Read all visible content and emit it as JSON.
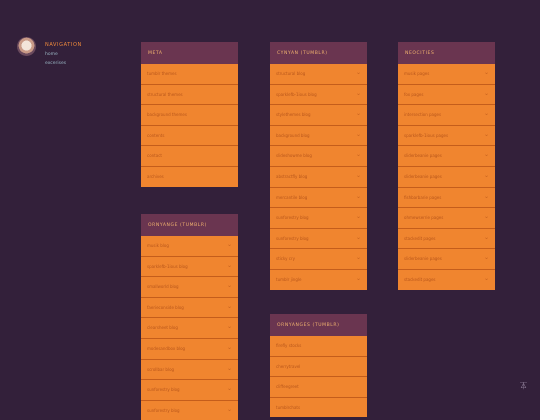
{
  "navigation": {
    "title": "NAVIGATION",
    "links": [
      "home",
      "excerises"
    ]
  },
  "panels": [
    {
      "title": "META",
      "items": [
        "tumblr themes",
        "structural themes",
        "background themes",
        "contents",
        "contact",
        "archives"
      ]
    },
    {
      "title": "CYNYAN (TUMBLR)",
      "items": [
        "structural blog",
        "sparklefb-1ious blog",
        "stylethemes blog",
        "background blog",
        "slideshowme blog",
        "abstractfly blog",
        "mercantile blog",
        "sunforestry blog",
        "sunforestry blog",
        "sticky cry",
        "tumblr jingle"
      ]
    },
    {
      "title": "NEOCITIES",
      "items": [
        "musik pages",
        "fox pages",
        "intersection pages",
        "sparklefb-1ious pages",
        "sliderbeanie pages",
        "sliderbeanie pages",
        "fishbarbarie pages",
        "ohmewserrie pages",
        "stackedit pages",
        "sliderbeanie pages",
        "stackedit pages"
      ]
    },
    {
      "title": "ORNYANGE (TUMBLR)",
      "items": [
        "musik blog",
        "sparklefb-1ious blog",
        "smallworld blog",
        "faerieconside blog",
        "clearsheet blog",
        "modesandbox blog",
        "scrollbar blog",
        "sunforestry blog",
        "sunforestry blog"
      ]
    },
    {
      "title": "ORNYANGES (TUMBLR)",
      "items": [
        "firefly stocks",
        "cherrytravel",
        "cliffeegreet",
        "tumblrchats"
      ]
    }
  ],
  "icons": {
    "chevron": "chevron-down-icon",
    "corner": "scroll-icon"
  },
  "colors": {
    "background": "#33203a",
    "panel_header": "#6a3550",
    "row": "#f0852f",
    "accent": "#f08a3c"
  }
}
